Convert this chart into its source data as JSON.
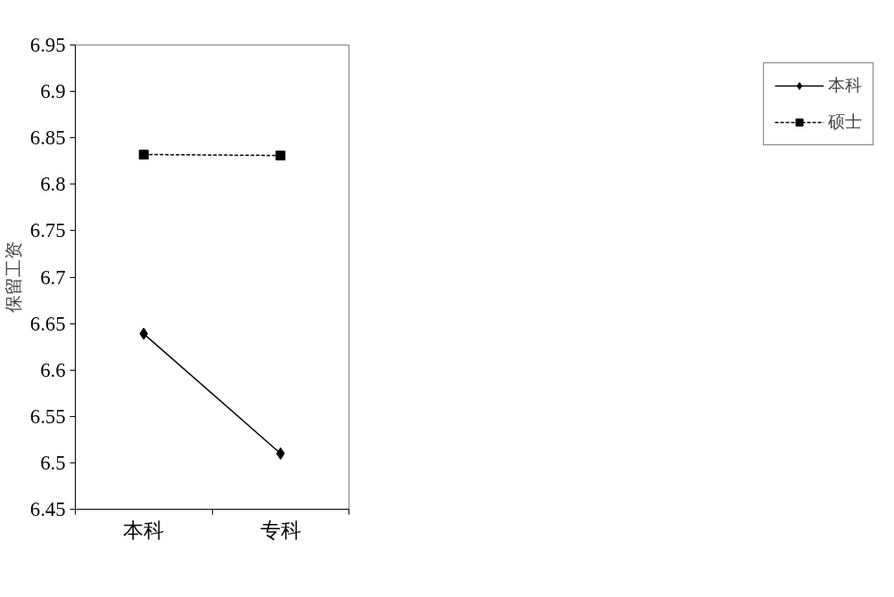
{
  "chart_data": {
    "type": "line",
    "ylabel": "保留工资",
    "categories": [
      "本科",
      "专科"
    ],
    "series": [
      {
        "name": "本科",
        "color": "#000000",
        "values": [
          6.639,
          6.51
        ],
        "marker": "diamond",
        "line_style": "solid"
      },
      {
        "name": "硕士",
        "color": "#000000",
        "values": [
          6.832,
          6.831
        ],
        "marker": "square",
        "line_style": "dashed"
      }
    ],
    "ylim": [
      6.45,
      6.95
    ],
    "yticks": [
      6.45,
      6.5,
      6.55,
      6.6,
      6.65,
      6.7,
      6.75,
      6.8,
      6.85,
      6.9,
      6.95
    ],
    "grid": false,
    "legend": "right"
  }
}
